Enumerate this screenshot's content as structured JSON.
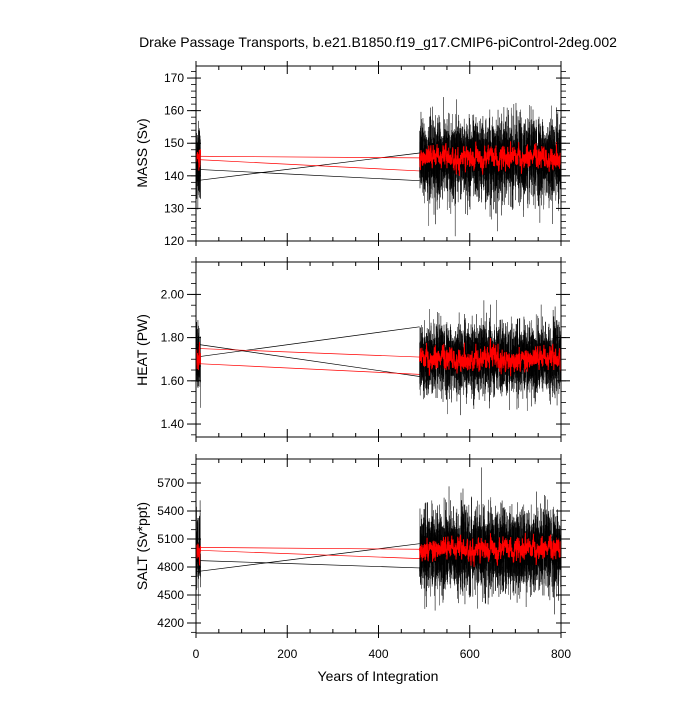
{
  "chart_data": [
    {
      "type": "line",
      "title": "Drake Passage Transports, b.e21.B1850.f19_g17.CMIP6-piControl-2deg.002",
      "xlabel": "Years of Integration",
      "ylabel": "MASS (Sv)",
      "xlim": [
        0,
        800
      ],
      "ylim": [
        120,
        173.7
      ],
      "xticks": [
        0,
        200,
        400,
        600,
        800
      ],
      "yticks": [
        120,
        130,
        140,
        150,
        160,
        170
      ],
      "ytick_labels": [
        "120",
        "130",
        "140",
        "150",
        "160",
        "170"
      ],
      "year_segments": [
        [
          1,
          10
        ],
        [
          490,
          800
        ]
      ],
      "series": [
        {
          "color": "#000000",
          "style": "monthly values",
          "mean": 145,
          "spread": 6.5
        },
        {
          "color": "#ff0000",
          "style": "running mean",
          "mean": 145.5,
          "spread": 1.6
        }
      ],
      "connectors": [
        {
          "color": "#000000",
          "from": [
            0,
            142
          ],
          "to": [
            490,
            138.5
          ]
        },
        {
          "color": "#000000",
          "from": [
            0,
            138.5
          ],
          "to": [
            490,
            147
          ]
        },
        {
          "color": "#ff0000",
          "from": [
            0,
            146
          ],
          "to": [
            490,
            145.5
          ]
        },
        {
          "color": "#ff0000",
          "from": [
            0,
            145
          ],
          "to": [
            490,
            141.5
          ]
        }
      ],
      "minor_y": 2
    },
    {
      "type": "line",
      "ylabel": "HEAT (PW)",
      "xlim": [
        0,
        800
      ],
      "ylim": [
        1.34,
        2.15
      ],
      "xticks": [
        0,
        200,
        400,
        600,
        800
      ],
      "yticks": [
        1.4,
        1.6,
        1.8,
        2.0
      ],
      "ytick_labels": [
        "1.40",
        "1.60",
        "1.80",
        "2.00"
      ],
      "year_segments": [
        [
          1,
          10
        ],
        [
          490,
          800
        ]
      ],
      "series": [
        {
          "color": "#000000",
          "style": "monthly values",
          "mean": 1.7,
          "spread": 0.085
        },
        {
          "color": "#ff0000",
          "style": "running mean",
          "mean": 1.7,
          "spread": 0.025
        }
      ],
      "connectors": [
        {
          "color": "#000000",
          "from": [
            0,
            1.71
          ],
          "to": [
            490,
            1.85
          ]
        },
        {
          "color": "#000000",
          "from": [
            0,
            1.77
          ],
          "to": [
            490,
            1.62
          ]
        },
        {
          "color": "#ff0000",
          "from": [
            0,
            1.75
          ],
          "to": [
            490,
            1.71
          ]
        },
        {
          "color": "#ff0000",
          "from": [
            0,
            1.68
          ],
          "to": [
            490,
            1.63
          ]
        }
      ],
      "minor_y": 0.05
    },
    {
      "type": "line",
      "ylabel": "SALT (Sv*ppt)",
      "xlim": [
        0,
        800
      ],
      "ylim": [
        4093,
        5957
      ],
      "xticks": [
        0,
        200,
        400,
        600,
        800
      ],
      "xtick_labels": [
        "0",
        "200",
        "400",
        "600",
        "800"
      ],
      "yticks": [
        4200,
        4500,
        4800,
        5100,
        5400,
        5700
      ],
      "ytick_labels": [
        "4200",
        "4500",
        "4800",
        "5100",
        "5400",
        "5700"
      ],
      "year_segments": [
        [
          1,
          10
        ],
        [
          490,
          800
        ]
      ],
      "series": [
        {
          "color": "#000000",
          "style": "monthly values",
          "mean": 4980,
          "spread": 230
        },
        {
          "color": "#ff0000",
          "style": "running mean",
          "mean": 4990,
          "spread": 55
        }
      ],
      "connectors": [
        {
          "color": "#000000",
          "from": [
            0,
            4870
          ],
          "to": [
            490,
            4790
          ]
        },
        {
          "color": "#000000",
          "from": [
            0,
            4750
          ],
          "to": [
            490,
            5050
          ]
        },
        {
          "color": "#ff0000",
          "from": [
            0,
            5010
          ],
          "to": [
            490,
            4990
          ]
        },
        {
          "color": "#ff0000",
          "from": [
            0,
            4980
          ],
          "to": [
            490,
            4890
          ]
        }
      ],
      "minor_y": 100
    }
  ]
}
